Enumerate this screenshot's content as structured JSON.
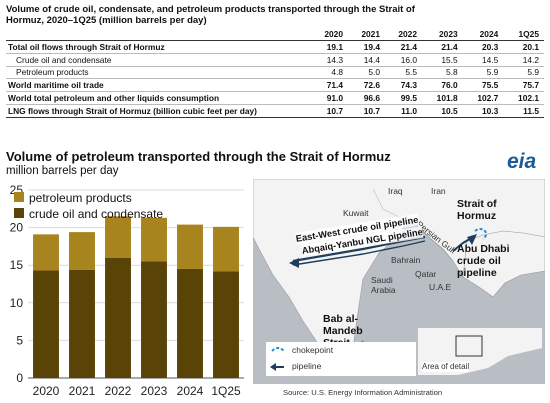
{
  "table": {
    "title": "Volume of crude oil, condensate, and petroleum products transported through the Strait of Hormuz, 2020–1Q25 (million barrels per day)",
    "columns": [
      "2020",
      "2021",
      "2022",
      "2023",
      "2024",
      "1Q25"
    ],
    "rows": [
      {
        "label": "Total oil flows through Strait of Hormuz",
        "bold": true,
        "indent": false,
        "values": [
          "19.1",
          "19.4",
          "21.4",
          "21.4",
          "20.3",
          "20.1"
        ]
      },
      {
        "label": "Crude oil and condensate",
        "bold": false,
        "indent": true,
        "values": [
          "14.3",
          "14.4",
          "16.0",
          "15.5",
          "14.5",
          "14.2"
        ]
      },
      {
        "label": "Petroleum products",
        "bold": false,
        "indent": true,
        "values": [
          "4.8",
          "5.0",
          "5.5",
          "5.8",
          "5.9",
          "5.9"
        ]
      },
      {
        "label": "World maritime oil trade",
        "bold": true,
        "indent": false,
        "values": [
          "71.4",
          "72.6",
          "74.3",
          "76.0",
          "75.5",
          "75.7"
        ]
      },
      {
        "label": "World total petroleum and other liquids consumption",
        "bold": true,
        "indent": false,
        "values": [
          "91.0",
          "96.6",
          "99.5",
          "101.8",
          "102.7",
          "102.1"
        ]
      },
      {
        "label": "LNG flows through Strait of Hormuz (billion cubic feet per day)",
        "bold": true,
        "indent": false,
        "values": [
          "10.7",
          "10.7",
          "11.0",
          "10.5",
          "10.3",
          "11.5"
        ]
      }
    ]
  },
  "chart": {
    "title": "Volume of petroleum transported through the Strait of Hormuz",
    "subtitle": "million barrels per day",
    "logo": "eia"
  },
  "chart_data": {
    "type": "bar",
    "stacked": true,
    "categories": [
      "2020",
      "2021",
      "2022",
      "2023",
      "2024",
      "1Q25"
    ],
    "series": [
      {
        "name": "crude oil and condensate",
        "color": "#5a4307",
        "values": [
          14.3,
          14.4,
          16.0,
          15.5,
          14.5,
          14.2
        ]
      },
      {
        "name": "petroleum products",
        "color": "#a8841e",
        "values": [
          4.8,
          5.0,
          5.5,
          5.8,
          5.9,
          5.9
        ]
      }
    ],
    "ylim": [
      0,
      25
    ],
    "yticks": [
      "0",
      "5",
      "10",
      "15",
      "20",
      "25"
    ],
    "grid": true,
    "legend": "top-left"
  },
  "map": {
    "labels": {
      "iraq": "Iraq",
      "iran": "Iran",
      "kuwait": "Kuwait",
      "persian_gulf": "Persian Gulf",
      "bahrain": "Bahrain",
      "qatar": "Qatar",
      "uae": "U.A.E",
      "saudi": "Saudi Arabia",
      "east_west": "East-West crude oil pipeline",
      "abqaiq": "Abqaiq-Yanbu NGL pipeline",
      "hormuz": "Strait of Hormuz",
      "abu_dhabi": "Abu Dhabi crude oil pipeline",
      "bab": "Bab al-Mandeb Strait"
    },
    "legend": {
      "chokepoint": "chokepoint",
      "pipeline": "pipeline",
      "area_of_detail": "Area of detail"
    },
    "colors": {
      "pipeline": "#1f3e5c",
      "chokepoint": "#1e8fd0",
      "land": "#f3f3f3",
      "water": "#b9bec5"
    }
  },
  "source": "Source: U.S. Energy Information Administration"
}
